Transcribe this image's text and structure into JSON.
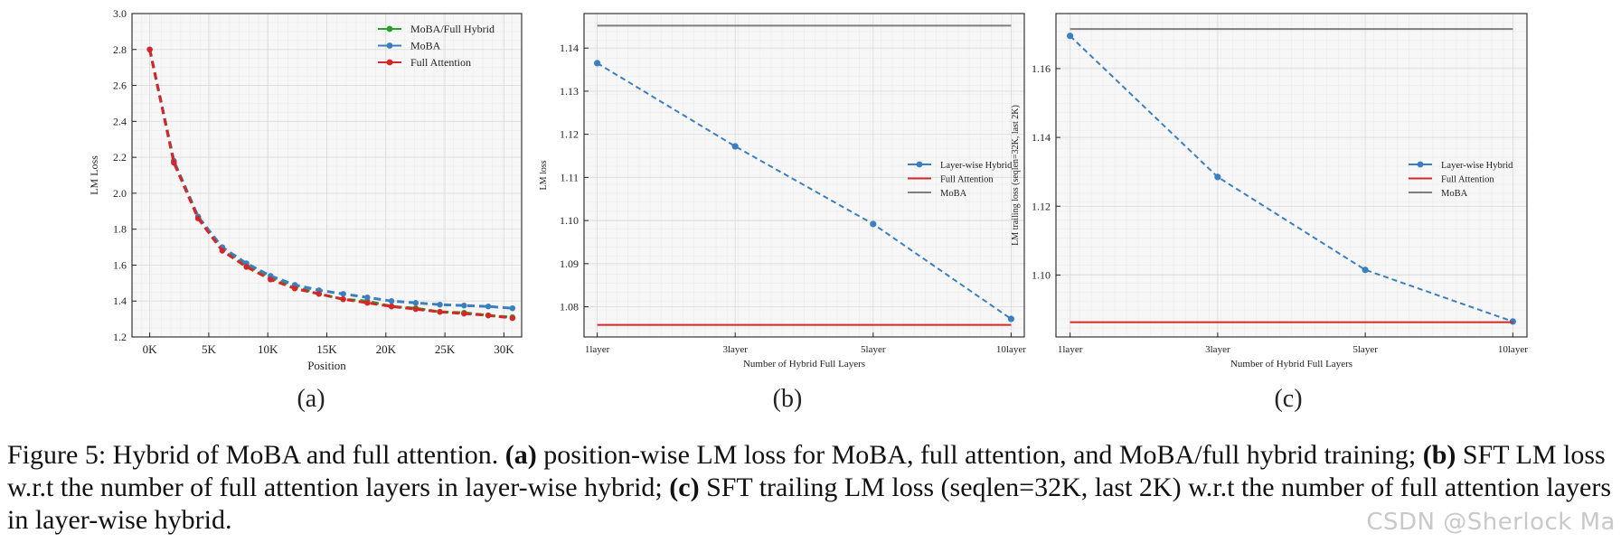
{
  "colors": {
    "green": "#2ca02c",
    "blue": "#3b7fc0",
    "red": "#d62728",
    "gray": "#7f7f7f",
    "grid": "#e6e6e6",
    "panel_bg": "#f7f7f7"
  },
  "chart_data": [
    {
      "type": "line",
      "panel_label": "(a)",
      "xlabel": "Position",
      "ylabel": "LM Loss",
      "xlim": [
        -1500,
        31500
      ],
      "ylim": [
        1.2,
        3.0
      ],
      "xticks": [
        0,
        5000,
        10000,
        15000,
        20000,
        25000,
        30000
      ],
      "xtick_labels": [
        "0K",
        "5K",
        "10K",
        "15K",
        "20K",
        "25K",
        "30K"
      ],
      "yticks": [
        1.2,
        1.4,
        1.6,
        1.8,
        2.0,
        2.2,
        2.4,
        2.6,
        2.8,
        3.0
      ],
      "ytick_labels": [
        "1.2",
        "1.4",
        "1.6",
        "1.8",
        "2.0",
        "2.2",
        "2.4",
        "2.6",
        "2.8",
        "3.0"
      ],
      "grid": true,
      "legend_position": "top-right",
      "x": [
        0,
        2048,
        4096,
        6144,
        8192,
        10240,
        12288,
        14336,
        16384,
        18432,
        20480,
        22528,
        24576,
        26624,
        28672,
        30720
      ],
      "series": [
        {
          "name": "MoBA/Full Hybrid",
          "color": "#2ca02c",
          "dashed": true,
          "values": [
            2.8,
            2.18,
            1.87,
            1.69,
            1.6,
            1.53,
            1.48,
            1.44,
            1.41,
            1.4,
            1.37,
            1.36,
            1.34,
            1.335,
            1.32,
            1.31
          ]
        },
        {
          "name": "MoBA",
          "color": "#3b7fc0",
          "dashed": true,
          "values": [
            2.8,
            2.18,
            1.87,
            1.7,
            1.61,
            1.54,
            1.49,
            1.46,
            1.44,
            1.42,
            1.4,
            1.39,
            1.38,
            1.375,
            1.37,
            1.36
          ]
        },
        {
          "name": "Full Attention",
          "color": "#d62728",
          "dashed": true,
          "values": [
            2.8,
            2.17,
            1.86,
            1.68,
            1.59,
            1.52,
            1.47,
            1.44,
            1.41,
            1.39,
            1.37,
            1.355,
            1.34,
            1.33,
            1.32,
            1.305
          ]
        }
      ]
    },
    {
      "type": "line",
      "panel_label": "(b)",
      "xlabel": "Number of Hybrid Full Layers",
      "ylabel": "LM loss",
      "categories": [
        "1layer",
        "3layer",
        "5layer",
        "10layer"
      ],
      "ylim": [
        1.073,
        1.148
      ],
      "yticks": [
        1.08,
        1.09,
        1.1,
        1.11,
        1.12,
        1.13,
        1.14
      ],
      "ytick_labels": [
        "1.08",
        "1.09",
        "1.10",
        "1.11",
        "1.12",
        "1.13",
        "1.14"
      ],
      "grid": true,
      "legend_position": "center-right",
      "series": [
        {
          "name": "Layer-wise Hybrid",
          "color": "#3b7fc0",
          "dashed": true,
          "markers": true,
          "values": [
            1.1365,
            1.1172,
            1.0992,
            1.0772
          ]
        },
        {
          "name": "Full Attention",
          "color": "#d62728",
          "dashed": false,
          "markers": false,
          "values": [
            1.0758,
            1.0758,
            1.0758,
            1.0758
          ]
        },
        {
          "name": "MoBA",
          "color": "#7f7f7f",
          "dashed": false,
          "markers": false,
          "values": [
            1.1452,
            1.1452,
            1.1452,
            1.1452
          ]
        }
      ]
    },
    {
      "type": "line",
      "panel_label": "(c)",
      "xlabel": "Number of Hybrid Full Layers",
      "ylabel": "LM trailing loss (seqlen=32K, last 2K)",
      "categories": [
        "1layer",
        "3layer",
        "5layer",
        "10layer"
      ],
      "ylim": [
        1.082,
        1.176
      ],
      "yticks": [
        1.1,
        1.12,
        1.14,
        1.16
      ],
      "ytick_labels": [
        "1.10",
        "1.12",
        "1.14",
        "1.16"
      ],
      "grid": true,
      "legend_position": "center-right",
      "series": [
        {
          "name": "Layer-wise Hybrid",
          "color": "#3b7fc0",
          "dashed": true,
          "markers": true,
          "values": [
            1.1695,
            1.1285,
            1.1015,
            1.0865
          ]
        },
        {
          "name": "Full Attention",
          "color": "#d62728",
          "dashed": false,
          "markers": false,
          "values": [
            1.0863,
            1.0863,
            1.0863,
            1.0863
          ]
        },
        {
          "name": "MoBA",
          "color": "#7f7f7f",
          "dashed": false,
          "markers": false,
          "values": [
            1.1715,
            1.1715,
            1.1715,
            1.1715
          ]
        }
      ]
    }
  ],
  "caption": {
    "prefix": "Figure 5: Hybrid of MoBA and full attention. ",
    "a_label": "(a)",
    "a_text": " position-wise LM loss for MoBA, full attention, and MoBA/full hybrid training; ",
    "b_label": "(b)",
    "b_text": " SFT LM loss w.r.t the number of full attention layers in layer-wise hybrid; ",
    "c_label": "(c)",
    "c_text": " SFT trailing LM loss (seqlen=32K, last 2K) w.r.t the number of full attention layers in layer-wise hybrid."
  },
  "watermark": "CSDN @Sherlock  Ma"
}
